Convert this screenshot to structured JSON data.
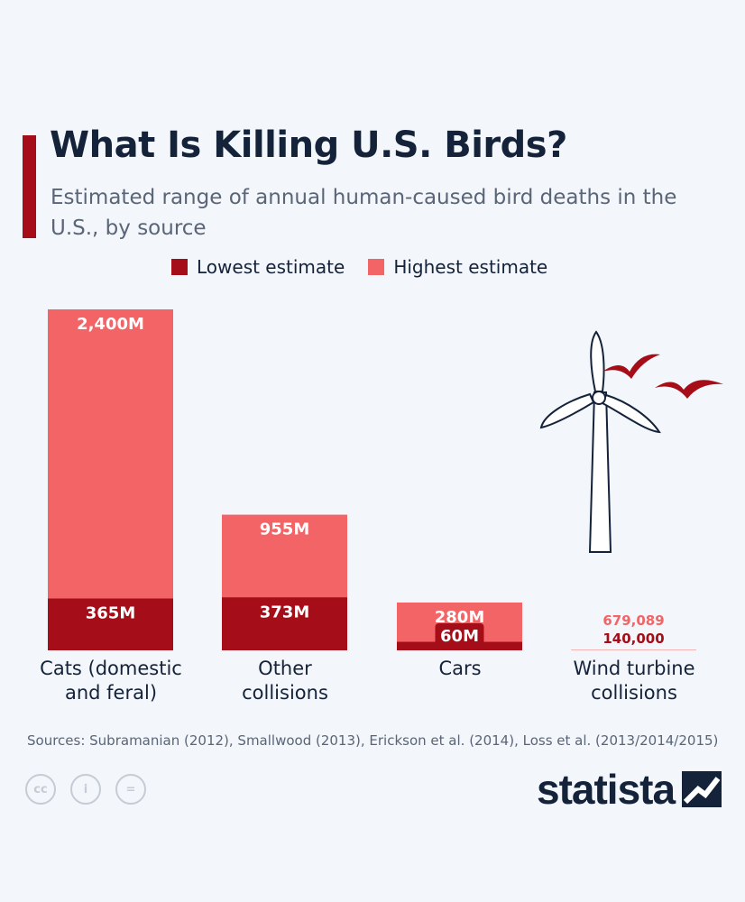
{
  "title": "What Is Killing U.S. Birds?",
  "subtitle": "Estimated range of annual human-caused bird deaths in the U.S., by source",
  "legend": {
    "low": "Lowest estimate",
    "high": "Highest estimate"
  },
  "colors": {
    "low": "#a50e18",
    "high": "#f26466",
    "text": "#14223a",
    "accent": "#a50e18"
  },
  "chart_data": {
    "type": "bar",
    "stacked": "overlay",
    "title": "What Is Killing U.S. Birds?",
    "subtitle": "Estimated range of annual human-caused bird deaths in the U.S., by source",
    "categories": [
      "Cats (domestic and feral)",
      "Other collisions",
      "Cars",
      "Wind turbine collisions"
    ],
    "series": [
      {
        "name": "Lowest estimate",
        "values": [
          365000000,
          373000000,
          60000000,
          140000
        ],
        "labels": [
          "365M",
          "373M",
          "60M",
          "140,000"
        ]
      },
      {
        "name": "Highest estimate",
        "values": [
          2400000000,
          955000000,
          280000000,
          679089
        ],
        "labels": [
          "2,400M",
          "955M",
          "280M",
          "679,089"
        ]
      }
    ],
    "ylim": [
      0,
      2400000000
    ],
    "grid": false,
    "legend_position": "top"
  },
  "categories_display": [
    [
      "Cats (domestic",
      "and feral)"
    ],
    [
      "Other",
      "collisions"
    ],
    [
      "Cars"
    ],
    [
      "Wind turbine",
      "collisions"
    ]
  ],
  "sources": "Sources: Subramanian (2012), Smallwood (2013), Erickson et al. (2014), Loss et al. (2013/2014/2015)",
  "license_icons": [
    "cc-icon",
    "attribution-icon",
    "no-derivatives-icon"
  ],
  "license_glyphs": [
    "cc",
    "i",
    "="
  ],
  "logo_text": "statista"
}
